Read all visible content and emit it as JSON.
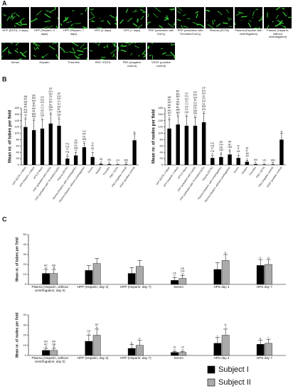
{
  "panel_labels": [
    "A",
    "B",
    "C"
  ],
  "panel_a": {
    "row1": [
      "HPP (EDTA, 4 days)",
      "HPP (Heparin, 4 days)",
      "HPP (Heparin, 7 days)",
      "HPS (4 days)",
      "HPS (7 days)",
      "PRP (activation with CaCl₂)",
      "PRP (activation with Thrombin/CaCl₂)",
      "Plasma (EDTA)",
      "Plasma (Heparin with centrifugation)",
      "Plasma (Heparin, without centrifugation)"
    ],
    "row2": [
      "Serum",
      "Heparin",
      "Thrombin",
      "PBS / EDTA",
      "PBS (negative control)",
      "VEGF (positive control)"
    ]
  },
  "chart_data": [
    {
      "type": "bar",
      "y_label": "Mean nr. of tubes per field",
      "categories": [
        "HPP (EDTA, 4 days)",
        "HPP (Heparin, 4 days)",
        "HPS (4 days)",
        "PRP (activation with CaCl2)",
        "PRP (activation with Thrombin/CaCl2)",
        "Plasma (EDTA)",
        "Plasma (Heparin, with centrifugation)",
        "Plasma (Heparin, without centrifugation)",
        "Serum",
        "Heparin",
        "Thrombin",
        "PBS / EDTA",
        "PBS (negative control)",
        "VEGF (positive control)"
      ],
      "values": [
        120,
        110,
        115,
        131,
        124,
        20,
        30,
        56,
        25,
        3,
        2,
        1,
        1,
        78
      ],
      "errors": [
        25,
        30,
        28,
        30,
        22,
        8,
        10,
        12,
        14,
        2,
        1,
        1,
        1,
        20
      ],
      "letters": [
        [
          "AB",
          "AC",
          "AD",
          "AE",
          "AF",
          "AG",
          "AH",
          "AI",
          "A"
        ],
        [
          "BF",
          "BG",
          "BH",
          "BI",
          "BJ",
          "BK",
          "BL",
          "BM",
          "BN",
          "B"
        ],
        [
          "CF",
          "CG",
          "CH",
          "CI",
          "CJ",
          "CK",
          "CL",
          "CM",
          "C"
        ],
        [
          "DF",
          "DG",
          "DH",
          "DI",
          "DJ",
          "DK",
          "DL",
          "DM",
          "DN",
          "D"
        ],
        [
          "EF",
          "EG",
          "EH",
          "EI",
          "EJ",
          "EK",
          "EL",
          "EM",
          "EN",
          "E"
        ],
        [
          "FG",
          "FH",
          "FI",
          "FN",
          "F"
        ],
        [
          "GI",
          "GK",
          "GL",
          "GM",
          "G"
        ],
        [
          "HJ",
          "HK",
          "HL",
          "HM",
          "H"
        ],
        [
          "IJ",
          "IK",
          "IM",
          "I"
        ],
        [
          "JN",
          "J"
        ],
        [
          "KN",
          "K"
        ],
        [
          "LN",
          "L"
        ],
        [
          "MN",
          "M"
        ],
        [
          "N"
        ]
      ],
      "color": "#000000",
      "ylim": [
        0,
        180
      ],
      "yticks": [
        0,
        20,
        40,
        60,
        80,
        100,
        120,
        140,
        160,
        180
      ]
    },
    {
      "type": "bar",
      "y_label": "Mean nr. of nodes per field",
      "categories": [
        "HPP (EDTA, 4 days)",
        "HPP (Heparin, 4 days)",
        "HPS (4 days)",
        "PRP (activation with CaCl2)",
        "PRP (activation with Thrombin/CaCl2)",
        "Plasma (EDTA)",
        "Plasma (Heparin, with centrifugation)",
        "Plasma (Heparin, without centrifugation)",
        "Serum",
        "Heparin",
        "Thrombin",
        "PBS / EDTA",
        "PBS (negative control)",
        "VEGF (positive control)"
      ],
      "values": [
        115,
        128,
        124,
        124,
        135,
        22,
        25,
        33,
        22,
        10,
        2,
        1,
        1,
        80
      ],
      "errors": [
        28,
        25,
        30,
        26,
        28,
        8,
        9,
        10,
        8,
        5,
        1,
        1,
        1,
        20
      ],
      "letters": [
        [
          "AB",
          "AC",
          "AD",
          "AE",
          "AF",
          "AG",
          "AH",
          "AI",
          "A"
        ],
        [
          "BF",
          "BG",
          "BH",
          "BI",
          "BJ",
          "BK",
          "BL",
          "BM",
          "BN",
          "B"
        ],
        [
          "CF",
          "CG",
          "CH",
          "CI",
          "CJ",
          "CK",
          "CL",
          "CM",
          "C"
        ],
        [
          "DF",
          "DG",
          "DH",
          "DI",
          "DJ",
          "DK",
          "DL",
          "DM",
          "DN",
          "D"
        ],
        [
          "EF",
          "EG",
          "EH",
          "EI",
          "EJ",
          "EK",
          "EL",
          "EM",
          "EN",
          "E"
        ],
        [
          "FG",
          "FH",
          "FI",
          "FN",
          "F"
        ],
        [
          "GE",
          "GH",
          "GK",
          "GM",
          "G"
        ],
        [
          "HK",
          "HL",
          "HM",
          "H"
        ],
        [
          "IK",
          "IL",
          "IM",
          "I"
        ],
        [
          "JK",
          "JL",
          "JM",
          "JN",
          "J"
        ],
        [
          "KN",
          "K"
        ],
        [
          "LN",
          "L"
        ],
        [
          "MN",
          "M"
        ],
        [
          "N"
        ]
      ],
      "color": "#000000",
      "ylim": [
        0,
        180
      ],
      "yticks": [
        0,
        20,
        40,
        60,
        80,
        100,
        120,
        140,
        160,
        180
      ]
    },
    {
      "type": "grouped_bar",
      "y_label": "Mean nr. of tubes per field",
      "categories": [
        "Plasma (Heparin, without centrifugation; day 0)",
        "HPP (Heparin; day 4)",
        "HPP (Heparin; day 7)",
        "Serum",
        "HPS day 4",
        "HPS day 7"
      ],
      "series": [
        {
          "name": "Subject I",
          "color": "#000000",
          "values": [
            11,
            14,
            11,
            4,
            15,
            19
          ],
          "errors": [
            4,
            5,
            6,
            3,
            7,
            6
          ],
          "letters": [
            [
              "AC",
              "A"
            ],
            [],
            [],
            [
              "CF",
              "C"
            ],
            [],
            [
              "F"
            ]
          ]
        },
        {
          "name": "Subject II",
          "color": "#aaaaaa",
          "values": [
            11,
            21,
            18,
            6,
            24,
            20
          ],
          "errors": [
            4,
            5,
            6,
            3,
            6,
            5
          ],
          "letters": [
            [
              "BD",
              "B"
            ],
            [],
            [],
            [
              "DE",
              "DG",
              "D"
            ],
            [
              "E"
            ],
            [
              "G"
            ]
          ]
        }
      ],
      "ylim": [
        0,
        50
      ],
      "yticks": [
        0,
        10,
        20,
        30,
        40,
        50
      ]
    },
    {
      "type": "grouped_bar",
      "y_label": "Mean nr. of nodes per field",
      "categories": [
        "Plasma (Heparin, without centrifugation; day 0)",
        "HPP (Heparin; day 4)",
        "HPP (Heparin; day 7)",
        "Serum",
        "HPS day 4",
        "HPS day 7"
      ],
      "series": [
        {
          "name": "Subject I",
          "color": "#000000",
          "values": [
            5,
            14,
            7,
            3,
            12,
            11
          ],
          "errors": [
            2,
            6,
            4,
            1,
            6,
            4
          ],
          "letters": [
            [
              "AG",
              "AC",
              "A"
            ],
            [
              "CE",
              "C"
            ],
            [
              "E"
            ],
            [
              "GI",
              "G"
            ],
            [
              "I"
            ],
            [
              "K"
            ]
          ]
        },
        {
          "name": "Subject II",
          "color": "#aaaaaa",
          "values": [
            5,
            20,
            10,
            3,
            20,
            12
          ],
          "errors": [
            2,
            6,
            5,
            1,
            6,
            4
          ],
          "letters": [
            [
              "BH",
              "AB",
              "B"
            ],
            [
              "DF",
              "D"
            ],
            [
              "F"
            ],
            [
              "HI",
              "H"
            ],
            [
              "JL",
              "J"
            ],
            [
              "L"
            ]
          ]
        }
      ],
      "ylim": [
        0,
        40
      ],
      "yticks": [
        0,
        10,
        20,
        30,
        40
      ]
    }
  ]
}
